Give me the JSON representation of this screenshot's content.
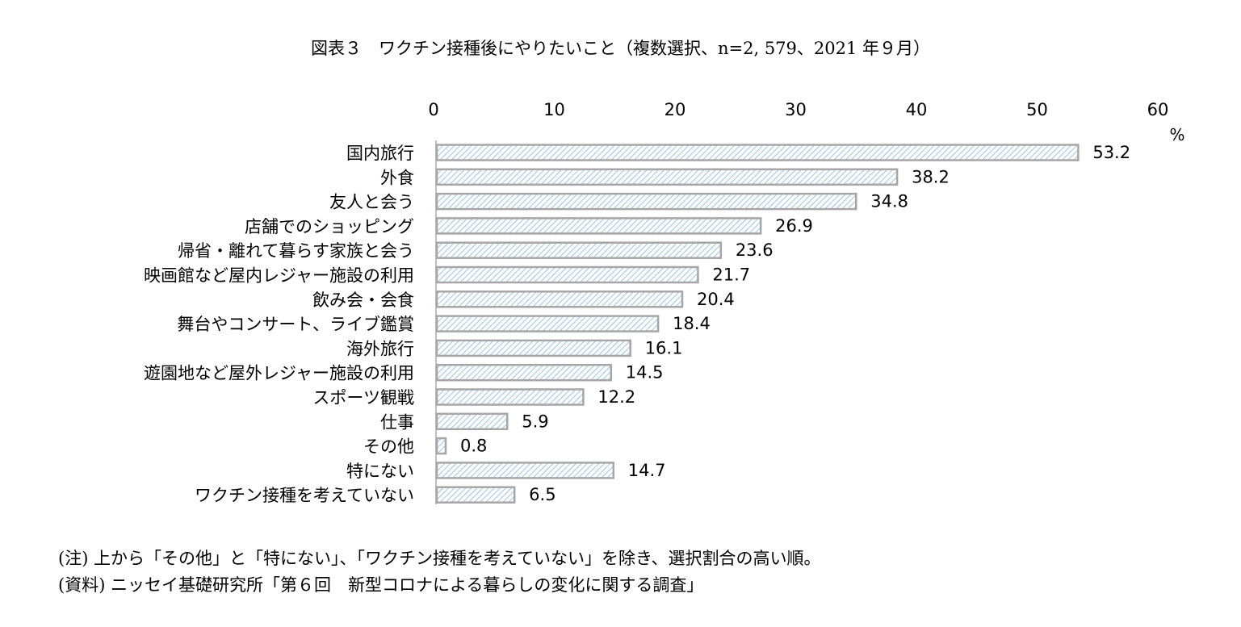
{
  "chart_data": {
    "type": "bar",
    "orientation": "horizontal",
    "title": "図表３　ワクチン接種後にやりたいこと（複数選択、n=2, 579、2021 年９月）",
    "unit_label": "%",
    "xlim": [
      0,
      60
    ],
    "ticks": [
      "0",
      "10",
      "20",
      "30",
      "40",
      "50",
      "60"
    ],
    "categories": [
      "国内旅行",
      "外食",
      "友人と会う",
      "店舗でのショッピング",
      "帰省・離れて暮らす家族と会う",
      "映画館など屋内レジャー施設の利用",
      "飲み会・会食",
      "舞台やコンサート、ライブ鑑賞",
      "海外旅行",
      "遊園地など屋外レジャー施設の利用",
      "スポーツ観戦",
      "仕事",
      "その他",
      "特にない",
      "ワクチン接種を考えていない"
    ],
    "values": [
      53.2,
      38.2,
      34.8,
      26.9,
      23.6,
      21.7,
      20.4,
      18.4,
      16.1,
      14.5,
      12.2,
      5.9,
      0.8,
      14.7,
      6.5
    ],
    "labels": [
      "53.2",
      "38.2",
      "34.8",
      "26.9",
      "23.6",
      "21.7",
      "20.4",
      "18.4",
      "16.1",
      "14.5",
      "12.2",
      "5.9",
      "0.8",
      "14.7",
      "6.5"
    ],
    "axis_position": "top",
    "grid": false,
    "bar_fill": "diagonal hatch",
    "colors": {
      "bar_stroke": "#a6a6a6",
      "hatch": "#9dc3e6",
      "axis": "#bfbfbf"
    }
  },
  "notes": [
    "(注) 上から「その他」と「特にない」、「ワクチン接種を考えていない」を除き、選択割合の高い順。",
    "(資料) ニッセイ基礎研究所「第６回　新型コロナによる暮らしの変化に関する調査」"
  ]
}
